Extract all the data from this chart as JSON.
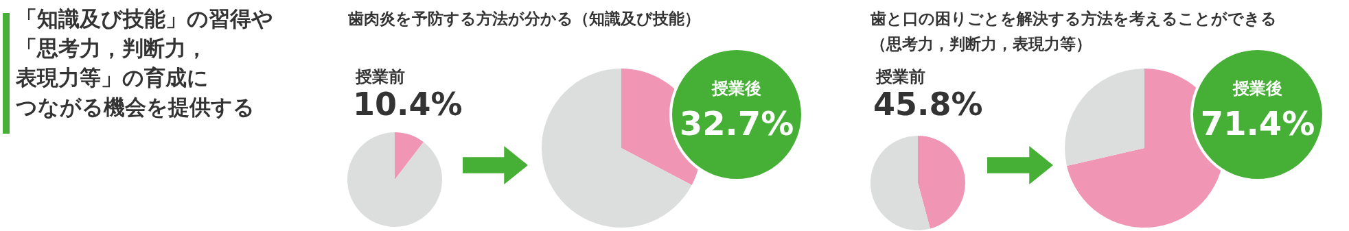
{
  "chart_data": [
    {
      "type": "other",
      "title": "「知識及び技能」の習得や「思考力，判断力，表現力等」の育成につながる機会を提供する"
    },
    {
      "type": "pie",
      "title": "歯肉炎を予防する方法が分かる（知識及び技能）",
      "subtitle": "授業前",
      "categories": [
        null,
        null
      ],
      "values": [
        10.4,
        89.6
      ],
      "colors": [
        "#f096b4",
        "#dcdddd"
      ],
      "value_labels": [
        "10.4%",
        null
      ]
    },
    {
      "type": "pie",
      "subtitle": "授業後",
      "categories": [
        null,
        null
      ],
      "values": [
        32.7,
        67.3
      ],
      "colors": [
        "#f096b4",
        "#dcdddd"
      ],
      "value_labels": [
        "32.7%",
        null
      ]
    },
    {
      "type": "pie",
      "title": "歯と口の困りごとを解決する方法を考えることができる（思考力，判断力，表現力等）",
      "subtitle": "授業前",
      "categories": [
        null,
        null
      ],
      "values": [
        45.8,
        54.2
      ],
      "colors": [
        "#f096b4",
        "#dcdddd"
      ],
      "value_labels": [
        "45.8%",
        null
      ]
    },
    {
      "type": "pie",
      "subtitle": "授業後",
      "categories": [
        null,
        null
      ],
      "values": [
        71.4,
        28.6
      ],
      "colors": [
        "#f096b4",
        "#dcdddd"
      ],
      "value_labels": [
        "71.4%",
        null
      ]
    }
  ]
}
